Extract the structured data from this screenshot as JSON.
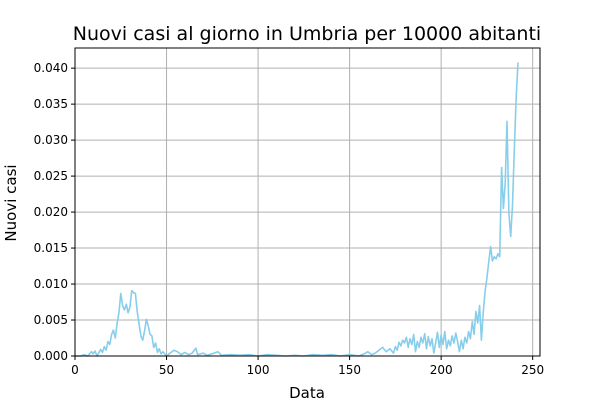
{
  "chart_data": {
    "type": "line",
    "title": "Nuovi casi al giorno in Umbria per 10000 abitanti",
    "xlabel": "Data",
    "ylabel": "Nuovi casi",
    "xlim": [
      0,
      254
    ],
    "ylim": [
      0,
      0.0428
    ],
    "xticks": [
      0,
      50,
      100,
      150,
      200,
      250
    ],
    "yticks": [
      0.0,
      0.005,
      0.01,
      0.015,
      0.02,
      0.025,
      0.03,
      0.035,
      0.04
    ],
    "xtick_labels": [
      "0",
      "50",
      "100",
      "150",
      "200",
      "250"
    ],
    "ytick_labels": [
      "0.000",
      "0.005",
      "0.010",
      "0.015",
      "0.020",
      "0.025",
      "0.030",
      "0.035",
      "0.040"
    ],
    "grid": true,
    "colors": {
      "line": "#87ceeb",
      "grid": "#b0b0b0",
      "axis": "#000000"
    },
    "series": [
      {
        "points": [
          [
            0,
            0.0
          ],
          [
            3,
            0.0
          ],
          [
            5,
            0.0002
          ],
          [
            7,
            0.0
          ],
          [
            9,
            0.0006
          ],
          [
            10,
            0.0003
          ],
          [
            11,
            0.0007
          ],
          [
            12,
            0.0
          ],
          [
            14,
            0.0009
          ],
          [
            15,
            0.0005
          ],
          [
            16,
            0.0013
          ],
          [
            17,
            0.0008
          ],
          [
            18,
            0.002
          ],
          [
            19,
            0.0016
          ],
          [
            20,
            0.003
          ],
          [
            21,
            0.0036
          ],
          [
            22,
            0.0025
          ],
          [
            23,
            0.0045
          ],
          [
            24,
            0.006
          ],
          [
            25,
            0.0087
          ],
          [
            26,
            0.007
          ],
          [
            27,
            0.0064
          ],
          [
            28,
            0.0072
          ],
          [
            29,
            0.006
          ],
          [
            30,
            0.0068
          ],
          [
            31,
            0.0091
          ],
          [
            32,
            0.0088
          ],
          [
            33,
            0.0087
          ],
          [
            34,
            0.0062
          ],
          [
            35,
            0.0044
          ],
          [
            36,
            0.0028
          ],
          [
            37,
            0.0022
          ],
          [
            38,
            0.0035
          ],
          [
            39,
            0.0051
          ],
          [
            40,
            0.0042
          ],
          [
            41,
            0.003
          ],
          [
            42,
            0.0028
          ],
          [
            43,
            0.0012
          ],
          [
            44,
            0.0018
          ],
          [
            45,
            0.0005
          ],
          [
            46,
            0.001
          ],
          [
            47,
            0.0003
          ],
          [
            48,
            0.0006
          ],
          [
            50,
            0.0
          ],
          [
            52,
            0.0004
          ],
          [
            54,
            0.0008
          ],
          [
            56,
            0.0006
          ],
          [
            58,
            0.0002
          ],
          [
            60,
            0.0005
          ],
          [
            62,
            0.0002
          ],
          [
            64,
            0.0004
          ],
          [
            66,
            0.0011
          ],
          [
            67,
            0.0002
          ],
          [
            70,
            0.0004
          ],
          [
            72,
            0.0001
          ],
          [
            75,
            0.0003
          ],
          [
            78,
            0.0006
          ],
          [
            80,
            0.0001
          ],
          [
            85,
            0.0002
          ],
          [
            90,
            0.0001
          ],
          [
            95,
            0.0002
          ],
          [
            100,
            0.0
          ],
          [
            105,
            0.0002
          ],
          [
            110,
            0.0001
          ],
          [
            115,
            0.0
          ],
          [
            120,
            0.0001
          ],
          [
            125,
            0.0
          ],
          [
            130,
            0.0002
          ],
          [
            135,
            0.0001
          ],
          [
            140,
            0.0002
          ],
          [
            145,
            0.0
          ],
          [
            150,
            0.0002
          ],
          [
            155,
            0.0
          ],
          [
            158,
            0.0003
          ],
          [
            160,
            0.0006
          ],
          [
            162,
            0.0002
          ],
          [
            164,
            0.0004
          ],
          [
            166,
            0.0008
          ],
          [
            168,
            0.0012
          ],
          [
            170,
            0.0006
          ],
          [
            172,
            0.001
          ],
          [
            174,
            0.0004
          ],
          [
            175,
            0.0013
          ],
          [
            176,
            0.0008
          ],
          [
            177,
            0.0019
          ],
          [
            178,
            0.0014
          ],
          [
            179,
            0.0022
          ],
          [
            180,
            0.0018
          ],
          [
            181,
            0.0026
          ],
          [
            182,
            0.0012
          ],
          [
            183,
            0.0024
          ],
          [
            184,
            0.0016
          ],
          [
            185,
            0.003
          ],
          [
            186,
            0.0006
          ],
          [
            187,
            0.002
          ],
          [
            188,
            0.0012
          ],
          [
            189,
            0.0026
          ],
          [
            190,
            0.0018
          ],
          [
            191,
            0.0031
          ],
          [
            192,
            0.001
          ],
          [
            193,
            0.0027
          ],
          [
            194,
            0.0014
          ],
          [
            195,
            0.0024
          ],
          [
            196,
            0.0004
          ],
          [
            197,
            0.0018
          ],
          [
            198,
            0.0033
          ],
          [
            199,
            0.0012
          ],
          [
            200,
            0.0029
          ],
          [
            201,
            0.0016
          ],
          [
            202,
            0.0034
          ],
          [
            203,
            0.001
          ],
          [
            204,
            0.0022
          ],
          [
            205,
            0.0014
          ],
          [
            206,
            0.0028
          ],
          [
            207,
            0.0018
          ],
          [
            208,
            0.0032
          ],
          [
            209,
            0.002
          ],
          [
            210,
            0.0006
          ],
          [
            211,
            0.0022
          ],
          [
            212,
            0.001
          ],
          [
            213,
            0.0026
          ],
          [
            214,
            0.0018
          ],
          [
            215,
            0.0034
          ],
          [
            216,
            0.0024
          ],
          [
            217,
            0.0048
          ],
          [
            218,
            0.003
          ],
          [
            219,
            0.0062
          ],
          [
            220,
            0.0046
          ],
          [
            221,
            0.007
          ],
          [
            222,
            0.0022
          ],
          [
            223,
            0.006
          ],
          [
            224,
            0.009
          ],
          [
            225,
            0.0108
          ],
          [
            226,
            0.013
          ],
          [
            227,
            0.0152
          ],
          [
            228,
            0.0132
          ],
          [
            229,
            0.0138
          ],
          [
            230,
            0.0135
          ],
          [
            231,
            0.0142
          ],
          [
            232,
            0.0138
          ],
          [
            233,
            0.0262
          ],
          [
            234,
            0.0205
          ],
          [
            235,
            0.024
          ],
          [
            236,
            0.0326
          ],
          [
            237,
            0.0198
          ],
          [
            238,
            0.0166
          ],
          [
            239,
            0.021
          ],
          [
            240,
            0.029
          ],
          [
            241,
            0.036
          ],
          [
            242,
            0.0408
          ]
        ]
      }
    ]
  }
}
